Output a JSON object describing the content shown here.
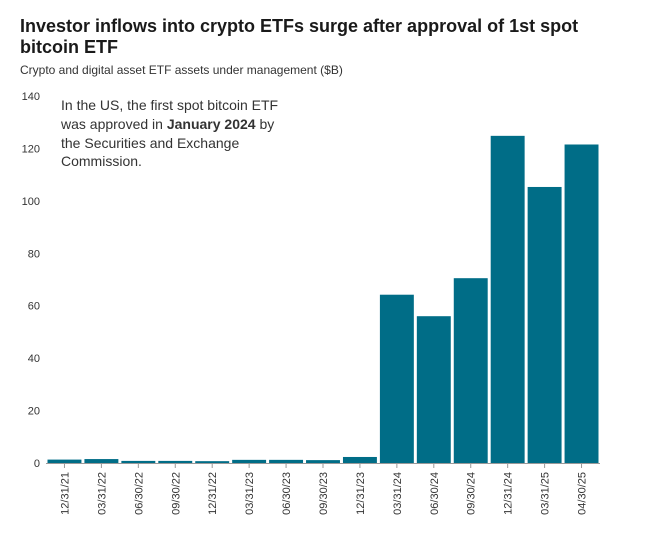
{
  "title": "Investor inflows into crypto ETFs surge after approval of 1st spot bitcoin ETF",
  "subtitle": "Crypto and digital asset ETF assets under management ($B)",
  "annotation": {
    "line1": "In the US, the first spot bitcoin ETF",
    "line2_pre": "was approved in ",
    "line2_bold": "January 2024",
    "line2_post": " by",
    "line3": "the Securities and Exchange",
    "line4": "Commission."
  },
  "colors": {
    "bar": "#006d87",
    "axis": "#999999",
    "text": "#333333"
  },
  "chart_data": {
    "type": "bar",
    "title": "Investor inflows into crypto ETFs surge after approval of 1st spot bitcoin ETF",
    "subtitle": "Crypto and digital asset ETF assets under management ($B)",
    "xlabel": "",
    "ylabel": "",
    "ylim": [
      0,
      140
    ],
    "yticks": [
      0,
      20,
      40,
      60,
      80,
      100,
      120,
      140
    ],
    "categories": [
      "12/31/21",
      "03/31/22",
      "06/30/22",
      "09/30/22",
      "12/31/22",
      "03/31/23",
      "06/30/23",
      "09/30/23",
      "12/31/23",
      "03/31/24",
      "06/30/24",
      "09/30/24",
      "12/31/24",
      "03/31/25",
      "04/30/25"
    ],
    "values": [
      1.3,
      1.5,
      0.8,
      0.8,
      0.7,
      1.2,
      1.2,
      1.1,
      2.3,
      64.2,
      56,
      70.5,
      124.8,
      105.3,
      121.5
    ],
    "grid": false,
    "legend": "none"
  }
}
